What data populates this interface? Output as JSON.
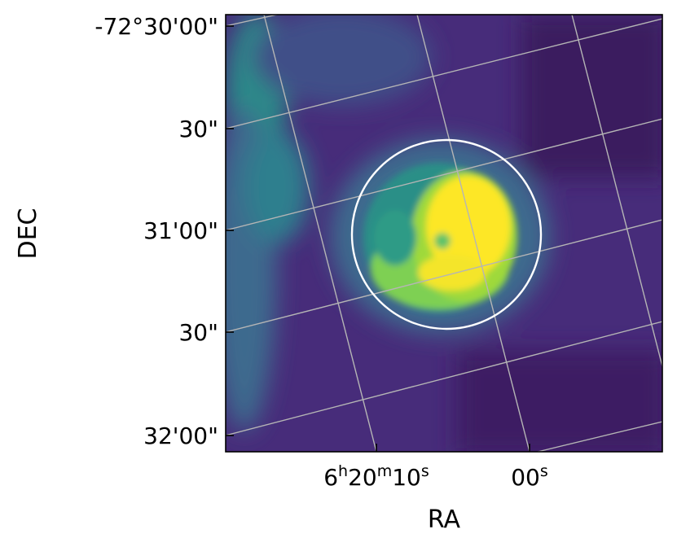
{
  "chart_data": {
    "type": "heatmap",
    "title": "",
    "xlabel": "RA",
    "ylabel": "DEC",
    "colormap": "viridis",
    "x_ticks": [
      {
        "label_main": "6",
        "label_sup1": "h",
        "label_mid": "20",
        "label_sup2": "m",
        "label_end": "10",
        "label_sup3": "s"
      },
      {
        "label_main": "00",
        "label_sup3": "s"
      }
    ],
    "y_ticks": [
      "-72°30'00\"",
      "30\"",
      "31'00\"",
      "30\"",
      "32'00\""
    ],
    "grid": true,
    "grid_color": "#b5b5b5",
    "overlay": {
      "shape": "circle",
      "color": "#ffffff"
    },
    "colors": {
      "background": "#472c7a",
      "dark": "#3b1c5e",
      "mid": "#3e5e8b",
      "teal": "#2a8f87",
      "green": "#7ed053",
      "yellow": "#fde725"
    }
  }
}
